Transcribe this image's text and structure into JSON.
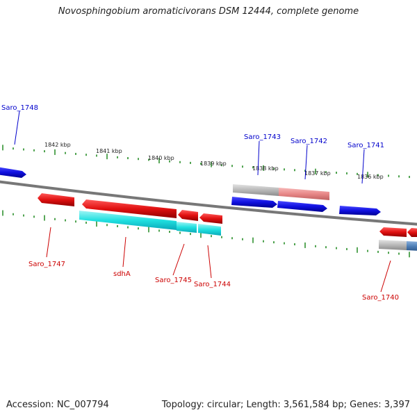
{
  "title": "Novosphingobium aromaticivorans DSM 12444, complete genome",
  "footer": {
    "accession": "Accession: NC_007794",
    "stats": "Topology: circular; Length: 3,561,584 bp; Genes: 3,397"
  },
  "colors": {
    "backbone": "#777777",
    "tick": "#228B22",
    "plus_strand_gene": "#1010e0",
    "minus_strand_gene": "#e01010",
    "cds_cyan": "#20e0e0",
    "cds_grey": "#b8b8b8",
    "cds_pink": "#e88888",
    "cds_steelblue": "#5080b8",
    "label_plus": "#0000cc",
    "label_minus": "#cc0000"
  },
  "scale_labels": [
    "1842 kbp",
    "1841 kbp",
    "1840 kbp",
    "1839 kbp",
    "1838 kbp",
    "1837 kbp",
    "1836 kbp"
  ],
  "gene_labels": {
    "plus": [
      "Saro_1748",
      "Saro_1743",
      "Saro_1742",
      "Saro_1741"
    ],
    "minus": [
      "Saro_1747",
      "sdhA",
      "Saro_1745",
      "Saro_1744",
      "Saro_1740"
    ]
  }
}
